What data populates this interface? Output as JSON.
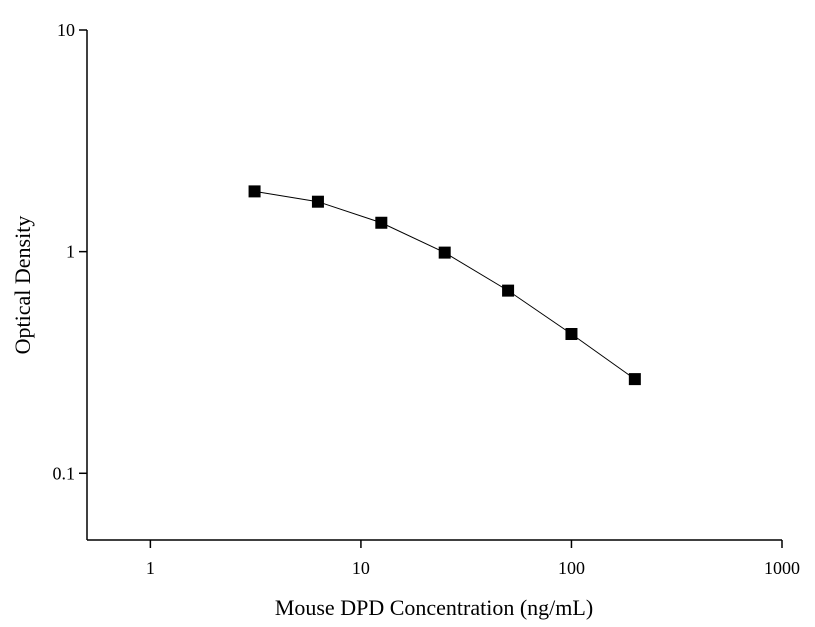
{
  "chart_data": {
    "type": "line",
    "x_label": "Mouse DPD Concentration (ng/mL)",
    "y_label": "Optical Density",
    "x": [
      3.125,
      6.25,
      12.5,
      25,
      50,
      100,
      200
    ],
    "series": [
      {
        "color": "#000000",
        "values": [
          1.87,
          1.68,
          1.35,
          0.99,
          0.667,
          0.425,
          0.266
        ]
      }
    ],
    "xlim": [
      0.5,
      1000
    ],
    "xticks": [
      1,
      10,
      100,
      1000
    ],
    "ylim": [
      0.05,
      10
    ],
    "yticks": [
      0.1,
      1,
      10
    ],
    "xscale": "log",
    "yscale": "log",
    "marker": "square"
  }
}
